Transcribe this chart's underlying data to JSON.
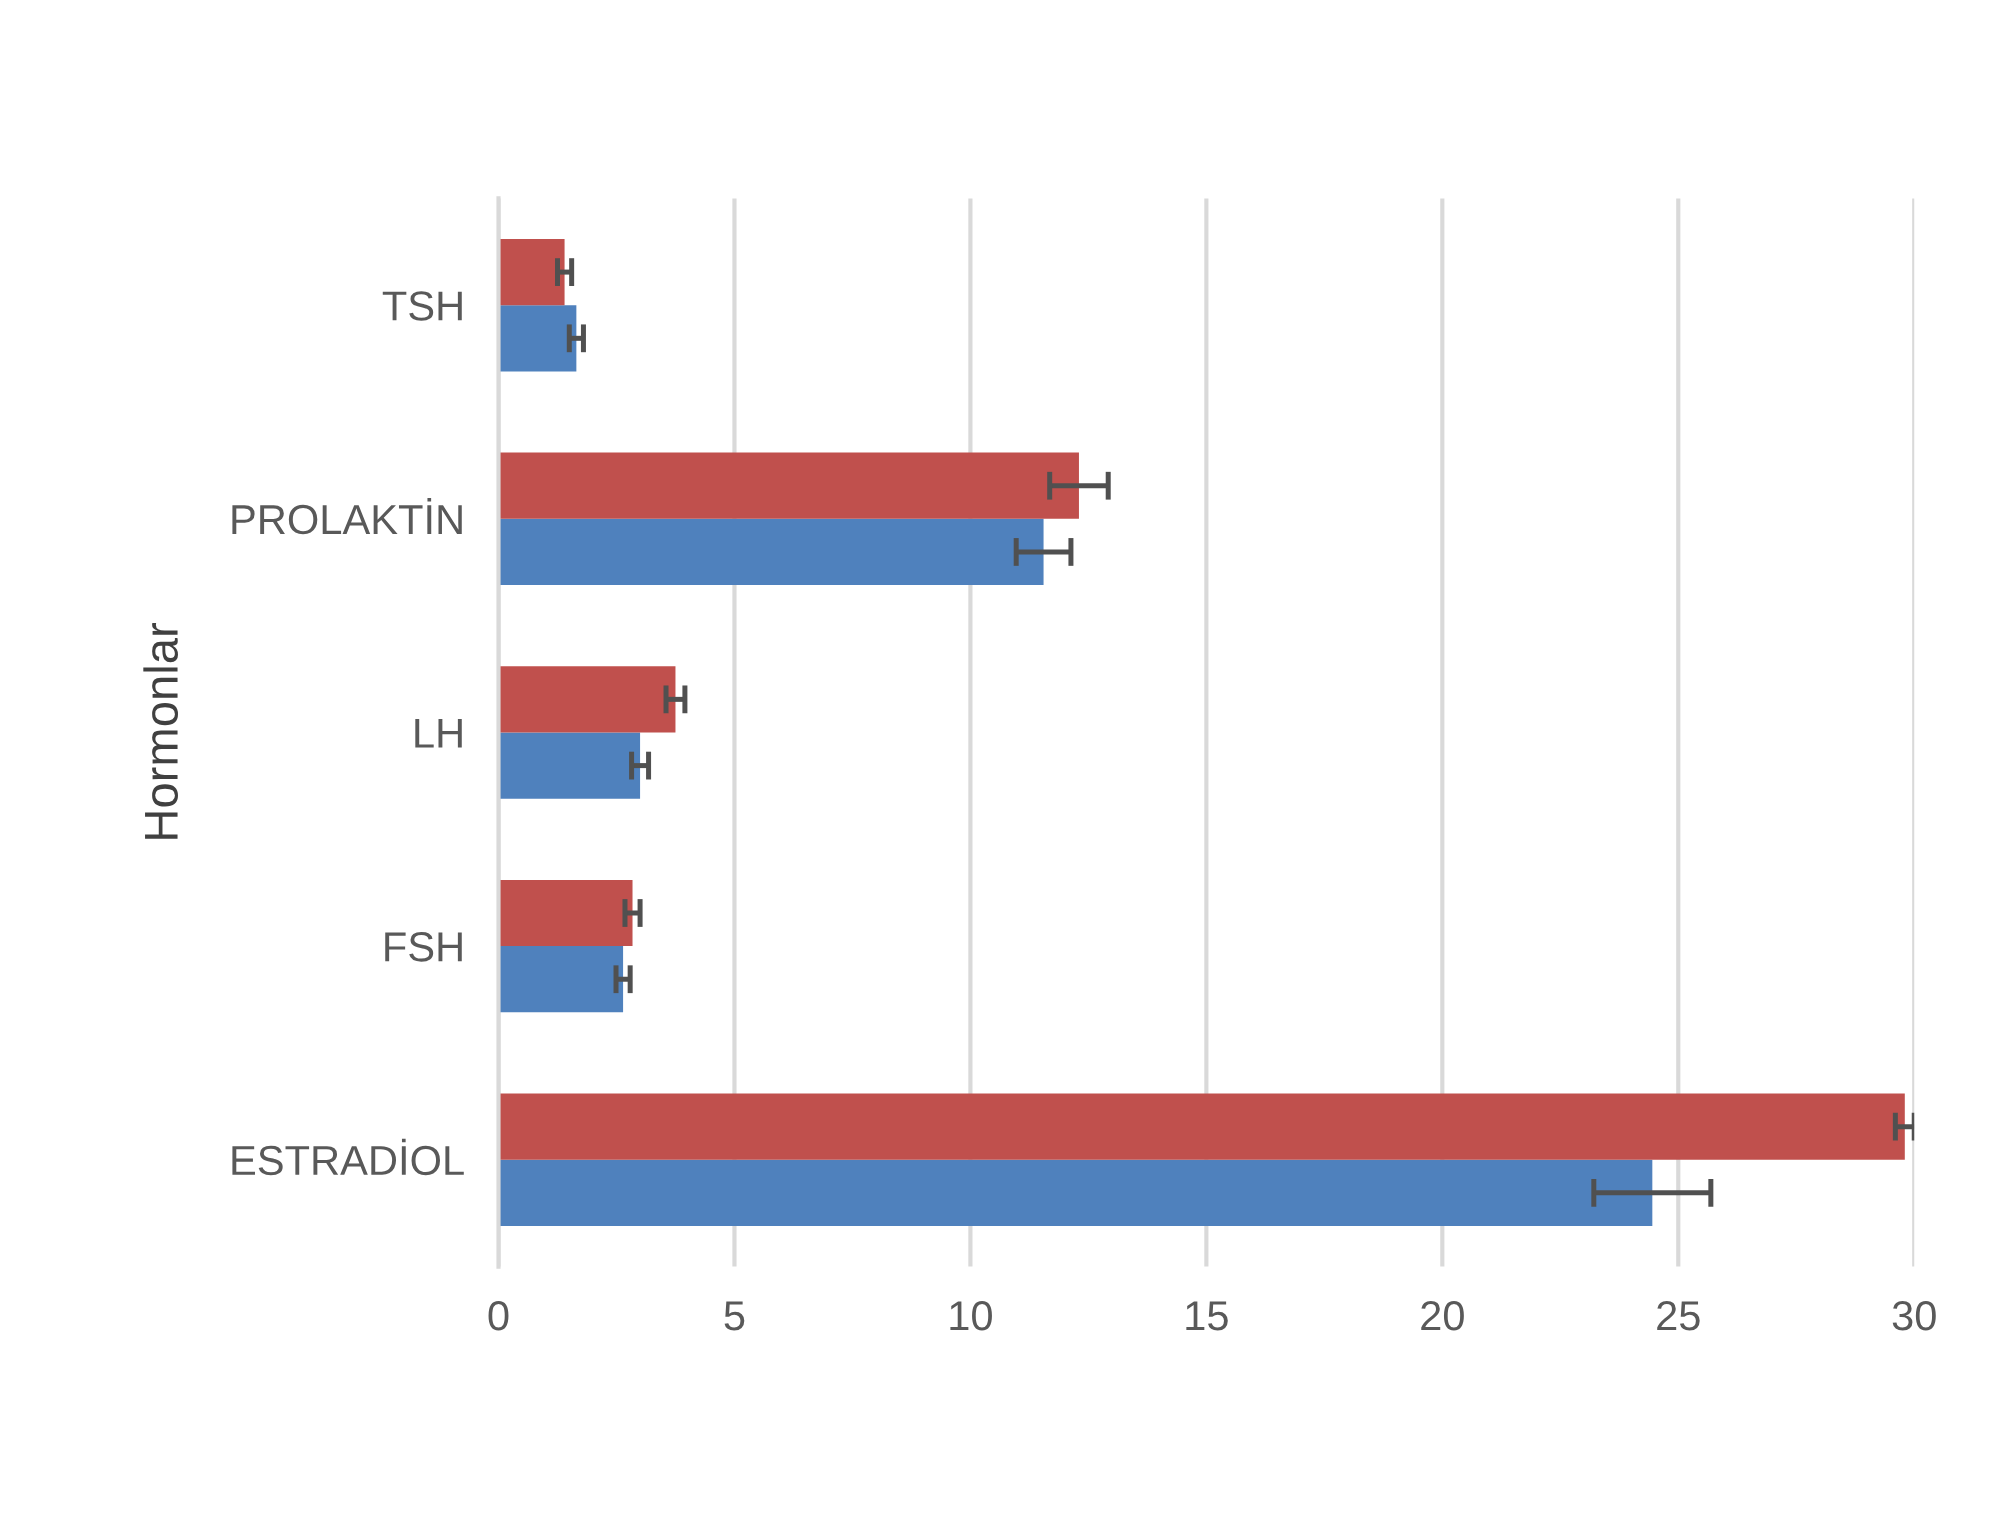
{
  "chart_data": {
    "type": "bar",
    "orientation": "horizontal",
    "ylabel": "Hormonlar",
    "categories": [
      "TSH",
      "PROLAKTİN",
      "LH",
      "FSH",
      "ESTRADİOL"
    ],
    "series": [
      {
        "color": "#4f81bd",
        "values": [
          1.65,
          11.55,
          3.0,
          2.64,
          24.45
        ],
        "errors": [
          0.15,
          0.58,
          0.18,
          0.15,
          1.24
        ]
      },
      {
        "color": "#c0504d",
        "values": [
          1.4,
          12.3,
          3.75,
          2.84,
          29.8
        ],
        "errors": [
          0.15,
          0.62,
          0.2,
          0.16,
          0.2
        ]
      }
    ],
    "xlim": [
      0,
      30
    ],
    "xticks": [
      0,
      5,
      10,
      15,
      20,
      25,
      30
    ],
    "grid": "x"
  }
}
